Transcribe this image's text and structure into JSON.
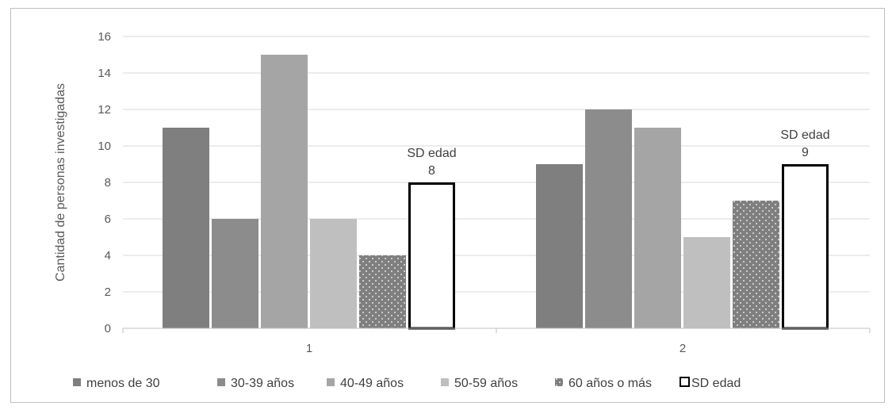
{
  "chart_data": {
    "type": "bar",
    "categories": [
      "1",
      "2"
    ],
    "series": [
      {
        "name": "menos de 30",
        "values": [
          11,
          9
        ],
        "color": "#7f7f7f",
        "pattern": "solid"
      },
      {
        "name": "30-39 años",
        "values": [
          6,
          12
        ],
        "color": "#8c8c8c",
        "pattern": "solid"
      },
      {
        "name": "40-49 años",
        "values": [
          15,
          11
        ],
        "color": "#a5a5a5",
        "pattern": "solid"
      },
      {
        "name": "50-59 años",
        "values": [
          6,
          5
        ],
        "color": "#bfbfbf",
        "pattern": "solid"
      },
      {
        "name": "60 años o más",
        "values": [
          4,
          7
        ],
        "color": "#7f7f7f",
        "pattern": "dotted"
      },
      {
        "name": "SD edad",
        "values": [
          8,
          9
        ],
        "color": "#ffffff",
        "pattern": "outline"
      }
    ],
    "data_labels": [
      {
        "series": "SD edad",
        "category": "1",
        "lines": [
          "SD edad",
          "8"
        ]
      },
      {
        "series": "SD edad",
        "category": "2",
        "lines": [
          "SD edad",
          "9"
        ]
      }
    ],
    "title": "",
    "xlabel": "",
    "ylabel": "Cantidad de personas investigadas",
    "ylim": [
      0,
      16
    ],
    "yticks": [
      0,
      2,
      4,
      6,
      8,
      10,
      12,
      14,
      16
    ],
    "grid": true,
    "legend_position": "bottom"
  }
}
